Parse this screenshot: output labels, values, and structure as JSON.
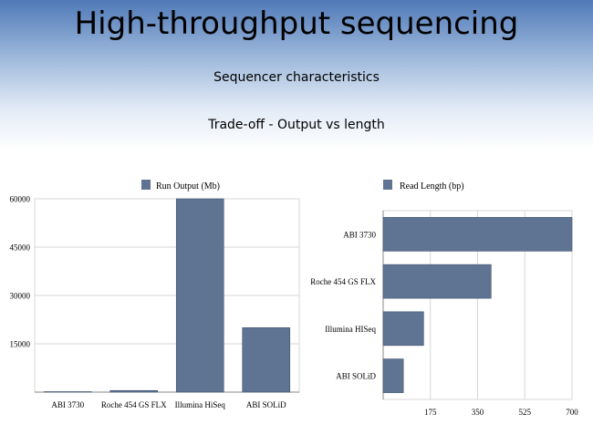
{
  "slide": {
    "title": "High-throughput sequencing",
    "subtitle": "Sequencer characteristics",
    "subtitle2": "Trade-off - Output vs length"
  },
  "colors": {
    "bar_fill": "#5f7393",
    "bar_stroke": "#3f536f",
    "grid": "#d7d7d7",
    "axis": "#8a8a8a"
  },
  "chart_data": [
    {
      "type": "bar",
      "orientation": "vertical",
      "categories": [
        "ABI 3730",
        "Roche 454 GS FLX",
        "Illumina HiSeq",
        "ABI SOLiD"
      ],
      "series": [
        {
          "name": "Run Output (Mb)",
          "values": [
            0.1,
            500,
            60000,
            20000
          ]
        }
      ],
      "yticks": [
        "15000",
        "30000",
        "45000",
        "60000"
      ],
      "ylim": [
        0,
        60000
      ],
      "legend_position": "top",
      "grid": true
    },
    {
      "type": "bar",
      "orientation": "horizontal",
      "categories": [
        "ABI 3730",
        "Roche 454 GS FLX",
        "Illumina HISeq",
        "ABI SOLiD"
      ],
      "series": [
        {
          "name": "Read Length (bp)",
          "values": [
            700,
            400,
            150,
            75
          ]
        }
      ],
      "xticks": [
        "175",
        "350",
        "525",
        "700"
      ],
      "xlim": [
        0,
        700
      ],
      "legend_position": "top",
      "grid": true
    }
  ]
}
